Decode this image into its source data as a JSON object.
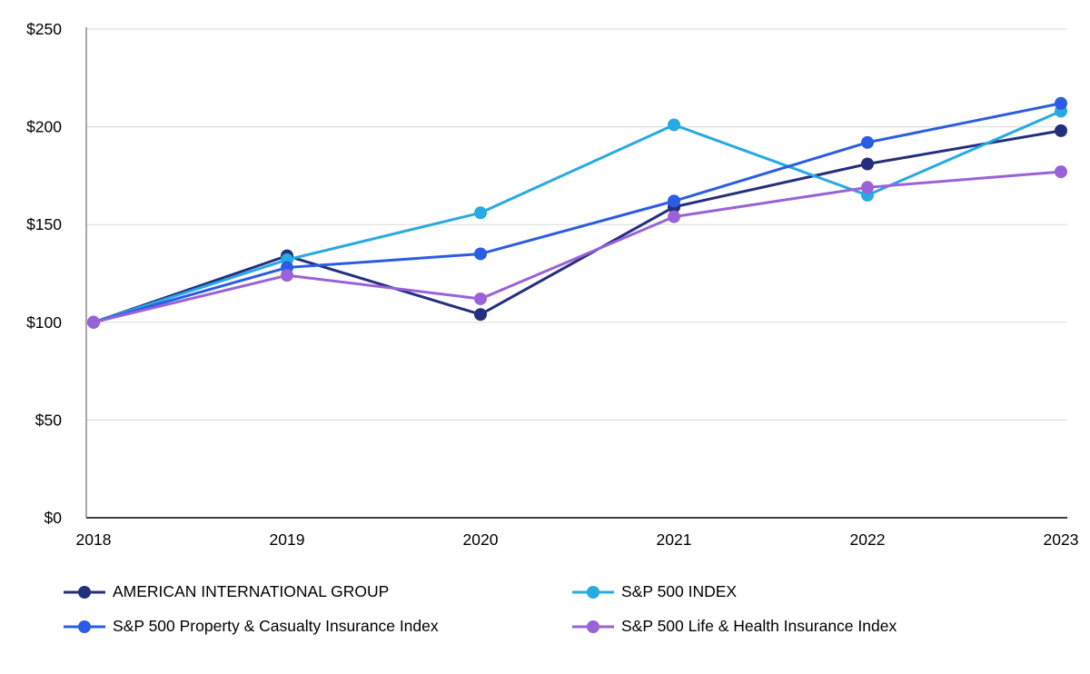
{
  "chart_data": {
    "type": "line",
    "title": "",
    "xlabel": "",
    "ylabel": "",
    "x": [
      2018,
      2019,
      2020,
      2021,
      2022,
      2023
    ],
    "x_tick_labels": [
      "2018",
      "2019",
      "2020",
      "2021",
      "2022",
      "2023"
    ],
    "y_ticks": [
      "$0",
      "$50",
      "$100",
      "$150",
      "$200",
      "$250"
    ],
    "y_tick_values": [
      0,
      50,
      100,
      150,
      200,
      250
    ],
    "ylim": [
      0,
      250
    ],
    "grid": "horizontal",
    "legend_position": "bottom",
    "grid_color": "#d9d9d9",
    "axis_color": "#8c8c8c",
    "baseline_color": "#404040",
    "series": [
      {
        "name": "AMERICAN INTERNATIONAL GROUP",
        "color": "#232e7e",
        "values": [
          100,
          134,
          104,
          159,
          181,
          198
        ]
      },
      {
        "name": "S&P 500 INDEX",
        "color": "#27a9e1",
        "values": [
          100,
          132,
          156,
          201,
          165,
          208
        ]
      },
      {
        "name": "S&P 500 Property & Casualty Insurance Index",
        "color": "#2a5ce4",
        "values": [
          100,
          128,
          135,
          162,
          192,
          212
        ]
      },
      {
        "name": "S&P 500 Life & Health Insurance Index",
        "color": "#9a62d8",
        "values": [
          100,
          124,
          112,
          154,
          169,
          177
        ]
      }
    ]
  }
}
